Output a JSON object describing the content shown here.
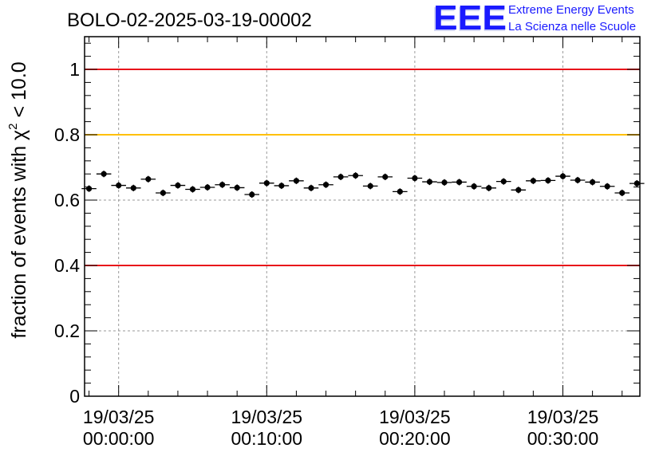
{
  "header": {
    "run_title": "BOLO-02-2025-03-19-00002",
    "logo_text": "EEE",
    "logo_line1": "Extreme Energy Events",
    "logo_line2": "La Scienza nelle Scuole"
  },
  "chart_data": {
    "type": "scatter",
    "title": "BOLO-02-2025-03-19-00002",
    "xlabel": "",
    "ylabel_main": "fraction of events with χ",
    "ylabel_sup": "2",
    "ylabel_tail": " < 10.0",
    "x_unit": "minutes since 19/03/25 00:00:00",
    "xlim": [
      -2.3,
      35.2
    ],
    "ylim": [
      0,
      1.1
    ],
    "grid": true,
    "y_ticks": [
      {
        "value": 0,
        "label": "0"
      },
      {
        "value": 0.2,
        "label": "0.2"
      },
      {
        "value": 0.4,
        "label": "0.4"
      },
      {
        "value": 0.6,
        "label": "0.6"
      },
      {
        "value": 0.8,
        "label": "0.8"
      },
      {
        "value": 1,
        "label": "1"
      }
    ],
    "x_ticks": [
      {
        "value": 0,
        "date": "19/03/25",
        "time": "00:00:00"
      },
      {
        "value": 10,
        "date": "19/03/25",
        "time": "00:10:00"
      },
      {
        "value": 20,
        "date": "19/03/25",
        "time": "00:20:00"
      },
      {
        "value": 30,
        "date": "19/03/25",
        "time": "00:30:00"
      }
    ],
    "reference_lines": [
      {
        "value": 1.0,
        "color": "#e8141a"
      },
      {
        "value": 0.8,
        "color": "#ffc000"
      },
      {
        "value": 0.4,
        "color": "#e8141a"
      }
    ],
    "bin_width_min": 1,
    "series": [
      {
        "name": "fraction",
        "color": "#000000",
        "x": [
          -2,
          -1,
          0,
          1,
          2,
          3,
          4,
          5,
          6,
          7,
          8,
          9,
          10,
          11,
          12,
          13,
          14,
          15,
          16,
          17,
          18,
          19,
          20,
          21,
          22,
          23,
          24,
          25,
          26,
          27,
          28,
          29,
          30,
          31,
          32,
          33,
          34,
          35
        ],
        "y": [
          0.635,
          0.68,
          0.645,
          0.637,
          0.664,
          0.622,
          0.645,
          0.633,
          0.639,
          0.647,
          0.638,
          0.617,
          0.652,
          0.644,
          0.659,
          0.637,
          0.647,
          0.671,
          0.675,
          0.643,
          0.671,
          0.626,
          0.667,
          0.656,
          0.654,
          0.655,
          0.642,
          0.637,
          0.657,
          0.631,
          0.659,
          0.66,
          0.673,
          0.661,
          0.655,
          0.642,
          0.622,
          0.651
        ],
        "err": [
          0.01,
          0.01,
          0.01,
          0.01,
          0.01,
          0.01,
          0.01,
          0.01,
          0.01,
          0.01,
          0.01,
          0.01,
          0.01,
          0.01,
          0.01,
          0.01,
          0.01,
          0.01,
          0.01,
          0.01,
          0.01,
          0.01,
          0.01,
          0.01,
          0.01,
          0.01,
          0.01,
          0.01,
          0.01,
          0.01,
          0.01,
          0.01,
          0.01,
          0.01,
          0.01,
          0.01,
          0.01,
          0.01
        ]
      }
    ]
  }
}
